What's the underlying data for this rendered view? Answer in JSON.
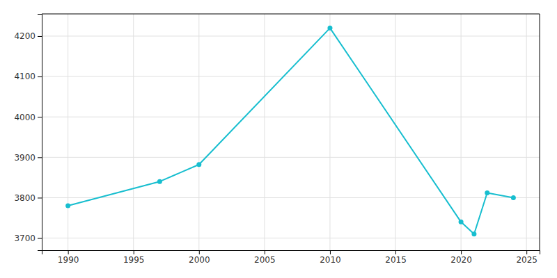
{
  "chart_data": {
    "type": "line",
    "x": [
      1990,
      1997,
      2000,
      2010,
      2020,
      2021,
      2022,
      2024
    ],
    "values": [
      3780,
      3840,
      3882,
      4220,
      3740,
      3710,
      3812,
      3800
    ],
    "color": "#17becf",
    "marker": "circle",
    "xlim": [
      1988,
      2026
    ],
    "ylim": [
      3670,
      4255
    ],
    "xticks": [
      1990,
      1995,
      2000,
      2005,
      2010,
      2015,
      2020,
      2025
    ],
    "yticks": [
      3700,
      3800,
      3900,
      4000,
      4100,
      4200
    ],
    "grid": true
  }
}
